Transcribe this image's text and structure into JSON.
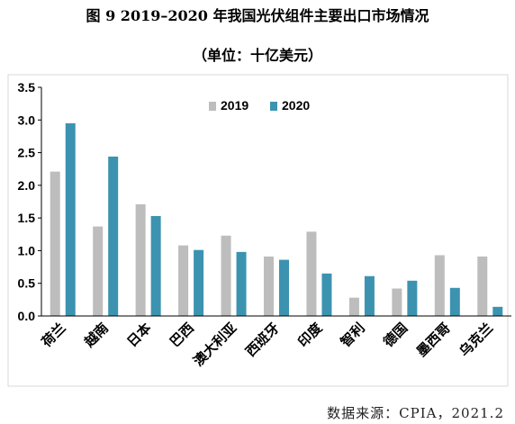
{
  "title": "图 9  2019–2020 年我国光伏组件主要出口市场情况",
  "subtitle": "（单位：十亿美元）",
  "source": "数据来源：CPIA，2021.2",
  "colors": {
    "2019": "#BDBDBD",
    "2020": "#3C93B0"
  },
  "chart_data": {
    "type": "bar",
    "title": "图 9  2019–2020 年我国光伏组件主要出口市场情况",
    "subtitle": "（单位：十亿美元）",
    "xlabel": "",
    "ylabel": "",
    "ylim": [
      0,
      3.5
    ],
    "yticks": [
      "0.0",
      "0.5",
      "1.0",
      "1.5",
      "2.0",
      "2.5",
      "3.0",
      "3.5"
    ],
    "grid": false,
    "legend": "top-center",
    "categories": [
      "荷兰",
      "越南",
      "日本",
      "巴西",
      "澳大利亚",
      "西班牙",
      "印度",
      "智利",
      "德国",
      "墨西哥",
      "乌克兰"
    ],
    "series": [
      {
        "name": "2019",
        "values": [
          2.21,
          1.37,
          1.71,
          1.08,
          1.23,
          0.91,
          1.29,
          0.28,
          0.42,
          0.93,
          0.91
        ]
      },
      {
        "name": "2020",
        "values": [
          2.95,
          2.44,
          1.53,
          1.01,
          0.98,
          0.86,
          0.65,
          0.61,
          0.54,
          0.43,
          0.14
        ]
      }
    ]
  }
}
